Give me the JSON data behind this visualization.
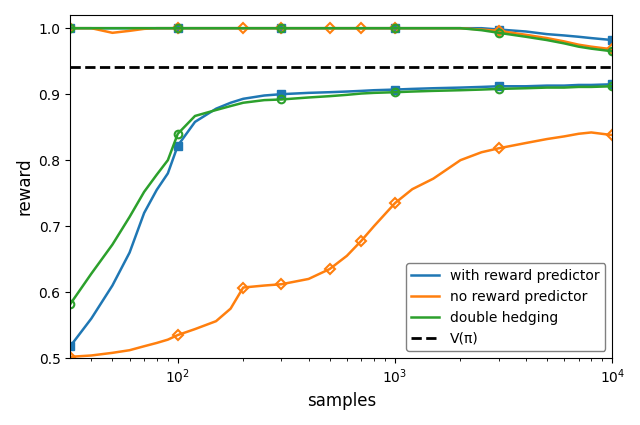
{
  "xlabel": "samples",
  "ylabel": "reward",
  "ylim": [
    0.5,
    1.02
  ],
  "vpi": 0.9405,
  "blue_color": "#1f77b4",
  "orange_color": "#ff7f0e",
  "green_color": "#2ca02c",
  "dashed_color": "#000000",
  "legend_labels": [
    "with reward predictor",
    "no reward predictor",
    "double hedging",
    "V(π)"
  ],
  "blue_lower_x": [
    32,
    40,
    50,
    60,
    70,
    80,
    90,
    100,
    120,
    150,
    175,
    200,
    250,
    300,
    400,
    500,
    600,
    700,
    800,
    1000,
    1200,
    1500,
    2000,
    2500,
    3000,
    4000,
    5000,
    6000,
    7000,
    8000,
    10000
  ],
  "blue_lower_y": [
    0.518,
    0.56,
    0.61,
    0.66,
    0.72,
    0.755,
    0.78,
    0.822,
    0.858,
    0.878,
    0.887,
    0.893,
    0.898,
    0.9,
    0.902,
    0.903,
    0.904,
    0.905,
    0.906,
    0.907,
    0.908,
    0.909,
    0.91,
    0.911,
    0.912,
    0.912,
    0.913,
    0.913,
    0.914,
    0.914,
    0.915
  ],
  "blue_upper_x": [
    32,
    40,
    50,
    60,
    70,
    80,
    90,
    100,
    120,
    150,
    175,
    200,
    250,
    300,
    400,
    500,
    600,
    700,
    800,
    1000,
    1200,
    1500,
    2000,
    2500,
    3000,
    4000,
    5000,
    6000,
    7000,
    8000,
    10000
  ],
  "blue_upper_y": [
    1.0,
    1.0,
    1.0,
    1.0,
    1.0,
    1.0,
    1.0,
    1.0,
    1.0,
    1.0,
    1.0,
    1.0,
    1.0,
    1.0,
    1.0,
    1.0,
    1.0,
    1.0,
    1.0,
    1.0,
    1.0,
    1.0,
    1.0,
    1.0,
    0.998,
    0.995,
    0.991,
    0.989,
    0.987,
    0.985,
    0.982
  ],
  "orange_lower_x": [
    32,
    40,
    50,
    60,
    70,
    80,
    90,
    100,
    120,
    150,
    175,
    200,
    250,
    300,
    400,
    500,
    600,
    700,
    800,
    1000,
    1200,
    1500,
    2000,
    2500,
    3000,
    4000,
    5000,
    6000,
    7000,
    8000,
    10000
  ],
  "orange_lower_y": [
    0.502,
    0.504,
    0.508,
    0.512,
    0.518,
    0.523,
    0.528,
    0.535,
    0.544,
    0.556,
    0.575,
    0.607,
    0.61,
    0.612,
    0.62,
    0.635,
    0.655,
    0.678,
    0.7,
    0.735,
    0.756,
    0.772,
    0.8,
    0.812,
    0.818,
    0.826,
    0.832,
    0.836,
    0.84,
    0.842,
    0.838
  ],
  "orange_upper_x": [
    32,
    40,
    50,
    60,
    70,
    80,
    90,
    100,
    120,
    150,
    175,
    200,
    250,
    300,
    400,
    500,
    600,
    700,
    800,
    1000,
    1200,
    1500,
    2000,
    2500,
    3000,
    4000,
    5000,
    6000,
    7000,
    8000,
    10000
  ],
  "orange_upper_y": [
    1.0,
    1.0,
    0.993,
    0.996,
    0.999,
    1.0,
    1.0,
    1.0,
    1.0,
    1.0,
    1.0,
    1.0,
    1.0,
    1.0,
    1.0,
    1.0,
    1.0,
    1.0,
    1.0,
    1.0,
    1.0,
    1.0,
    1.0,
    0.998,
    0.996,
    0.99,
    0.985,
    0.98,
    0.975,
    0.972,
    0.968
  ],
  "green_lower_x": [
    32,
    40,
    50,
    60,
    70,
    80,
    90,
    100,
    120,
    150,
    175,
    200,
    250,
    300,
    400,
    500,
    600,
    700,
    800,
    1000,
    1200,
    1500,
    2000,
    2500,
    3000,
    4000,
    5000,
    6000,
    7000,
    8000,
    10000
  ],
  "green_lower_y": [
    0.582,
    0.628,
    0.672,
    0.714,
    0.752,
    0.778,
    0.8,
    0.84,
    0.867,
    0.876,
    0.882,
    0.887,
    0.891,
    0.892,
    0.895,
    0.897,
    0.899,
    0.901,
    0.902,
    0.903,
    0.904,
    0.905,
    0.906,
    0.907,
    0.908,
    0.909,
    0.91,
    0.91,
    0.911,
    0.911,
    0.912
  ],
  "green_upper_x": [
    32,
    40,
    50,
    60,
    70,
    80,
    90,
    100,
    120,
    150,
    175,
    200,
    250,
    300,
    400,
    500,
    600,
    700,
    800,
    1000,
    1200,
    1500,
    2000,
    2500,
    3000,
    4000,
    5000,
    6000,
    7000,
    8000,
    10000
  ],
  "green_upper_y": [
    1.0,
    1.0,
    1.0,
    1.0,
    1.0,
    1.0,
    1.0,
    1.0,
    1.0,
    1.0,
    1.0,
    1.0,
    1.0,
    1.0,
    1.0,
    1.0,
    1.0,
    1.0,
    1.0,
    1.0,
    1.0,
    1.0,
    1.0,
    0.997,
    0.993,
    0.987,
    0.982,
    0.977,
    0.972,
    0.969,
    0.965
  ],
  "blue_lower_markers_x": [
    32,
    100,
    300,
    1000,
    3000,
    10000
  ],
  "blue_lower_markers_y": [
    0.518,
    0.822,
    0.9,
    0.907,
    0.912,
    0.915
  ],
  "blue_upper_markers_x": [
    32,
    100,
    300,
    1000,
    3000,
    10000
  ],
  "blue_upper_markers_y": [
    1.0,
    1.0,
    1.0,
    1.0,
    0.998,
    0.982
  ],
  "orange_lower_markers_x": [
    32,
    100,
    200,
    300,
    500,
    700,
    1000,
    3000,
    10000
  ],
  "orange_lower_markers_y": [
    0.502,
    0.535,
    0.607,
    0.612,
    0.635,
    0.678,
    0.735,
    0.818,
    0.838
  ],
  "orange_upper_markers_x": [
    32,
    100,
    200,
    300,
    500,
    700,
    1000,
    3000,
    10000
  ],
  "orange_upper_markers_y": [
    1.0,
    1.0,
    1.0,
    1.0,
    1.0,
    1.0,
    1.0,
    0.996,
    0.968
  ],
  "green_lower_markers_x": [
    32,
    100,
    300,
    1000,
    3000,
    10000
  ],
  "green_lower_markers_y": [
    0.582,
    0.84,
    0.892,
    0.903,
    0.908,
    0.912
  ],
  "green_upper_markers_x": [
    32,
    100,
    300,
    1000,
    3000,
    10000
  ],
  "green_upper_markers_y": [
    1.0,
    1.0,
    1.0,
    1.0,
    0.993,
    0.965
  ]
}
